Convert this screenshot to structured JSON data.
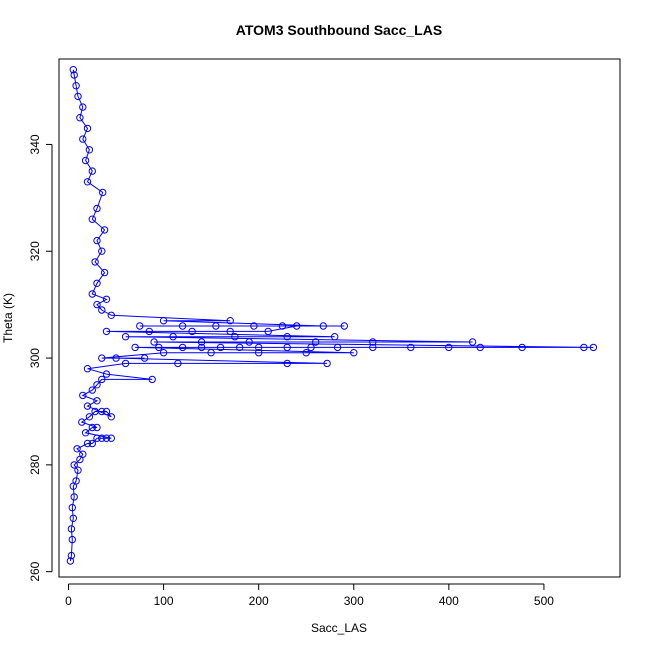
{
  "chart_data": {
    "type": "scatter",
    "title": "ATOM3 Southbound Sacc_LAS",
    "xlabel": "Sacc_LAS",
    "ylabel": "Theta (K)",
    "xlim": [
      -10,
      580
    ],
    "ylim": [
      259,
      356
    ],
    "xticks": [
      0,
      100,
      200,
      300,
      400,
      500
    ],
    "yticks": [
      260,
      280,
      300,
      320,
      340
    ],
    "xtick_labels": [
      "0",
      "100",
      "200",
      "300",
      "400",
      "500"
    ],
    "ytick_labels": [
      "260",
      "280",
      "300",
      "320",
      "340"
    ],
    "marker": "open-circle",
    "connected": true,
    "grid": false,
    "series_color": "#0000ff",
    "series": [
      {
        "points_core": [
          [
            2,
            262
          ],
          [
            3,
            263
          ],
          [
            4,
            266
          ],
          [
            3,
            268
          ],
          [
            5,
            270
          ],
          [
            4,
            272
          ],
          [
            6,
            274
          ],
          [
            5,
            276
          ],
          [
            8,
            277
          ],
          [
            10,
            279
          ],
          [
            6,
            280
          ],
          [
            12,
            281
          ],
          [
            15,
            282
          ],
          [
            9,
            283
          ],
          [
            20,
            284
          ],
          [
            25,
            284
          ],
          [
            30,
            285
          ],
          [
            35,
            285
          ],
          [
            40,
            285
          ],
          [
            45,
            285
          ],
          [
            18,
            286
          ],
          [
            25,
            287
          ],
          [
            30,
            287
          ],
          [
            14,
            288
          ],
          [
            22,
            289
          ],
          [
            28,
            290
          ],
          [
            35,
            290
          ],
          [
            40,
            290
          ],
          [
            45,
            289
          ],
          [
            20,
            291
          ],
          [
            30,
            292
          ],
          [
            15,
            293
          ],
          [
            25,
            294
          ],
          [
            30,
            295
          ],
          [
            35,
            296
          ],
          [
            88,
            296
          ],
          [
            40,
            297
          ],
          [
            20,
            298
          ],
          [
            60,
            299
          ],
          [
            115,
            299
          ],
          [
            230,
            299
          ],
          [
            272,
            299
          ],
          [
            50,
            300
          ],
          [
            80,
            300
          ],
          [
            35,
            300
          ],
          [
            100,
            301
          ],
          [
            150,
            301
          ],
          [
            200,
            301
          ],
          [
            250,
            301
          ],
          [
            300,
            301
          ],
          [
            70,
            302
          ],
          [
            95,
            302
          ],
          [
            120,
            302
          ],
          [
            140,
            302
          ],
          [
            160,
            302
          ],
          [
            180,
            302
          ],
          [
            200,
            302
          ],
          [
            230,
            302
          ],
          [
            255,
            302
          ],
          [
            283,
            302
          ],
          [
            320,
            302
          ],
          [
            360,
            302
          ],
          [
            400,
            302
          ],
          [
            433,
            302
          ],
          [
            477,
            302
          ],
          [
            542,
            302
          ],
          [
            552,
            302
          ],
          [
            90,
            303
          ],
          [
            140,
            303
          ],
          [
            190,
            303
          ],
          [
            260,
            303
          ],
          [
            320,
            303
          ],
          [
            425,
            303
          ],
          [
            60,
            304
          ],
          [
            110,
            304
          ],
          [
            175,
            304
          ],
          [
            230,
            304
          ],
          [
            280,
            304
          ],
          [
            40,
            305
          ],
          [
            85,
            305
          ],
          [
            130,
            305
          ],
          [
            170,
            305
          ],
          [
            210,
            305
          ],
          [
            240,
            306
          ],
          [
            290,
            306
          ],
          [
            75,
            306
          ],
          [
            120,
            306
          ],
          [
            155,
            306
          ],
          [
            195,
            306
          ],
          [
            225,
            306
          ],
          [
            268,
            306
          ],
          [
            100,
            307
          ],
          [
            170,
            307
          ],
          [
            45,
            308
          ],
          [
            35,
            309
          ],
          [
            30,
            310
          ],
          [
            40,
            311
          ],
          [
            25,
            312
          ],
          [
            30,
            314
          ],
          [
            38,
            316
          ],
          [
            28,
            318
          ],
          [
            35,
            320
          ],
          [
            30,
            322
          ],
          [
            38,
            324
          ],
          [
            25,
            326
          ],
          [
            30,
            328
          ],
          [
            36,
            331
          ],
          [
            20,
            333
          ],
          [
            25,
            335
          ],
          [
            18,
            337
          ],
          [
            22,
            339
          ],
          [
            15,
            341
          ],
          [
            20,
            343
          ],
          [
            12,
            345
          ],
          [
            15,
            347
          ],
          [
            10,
            349
          ],
          [
            8,
            351
          ],
          [
            6,
            353
          ],
          [
            5,
            354
          ]
        ]
      }
    ]
  }
}
